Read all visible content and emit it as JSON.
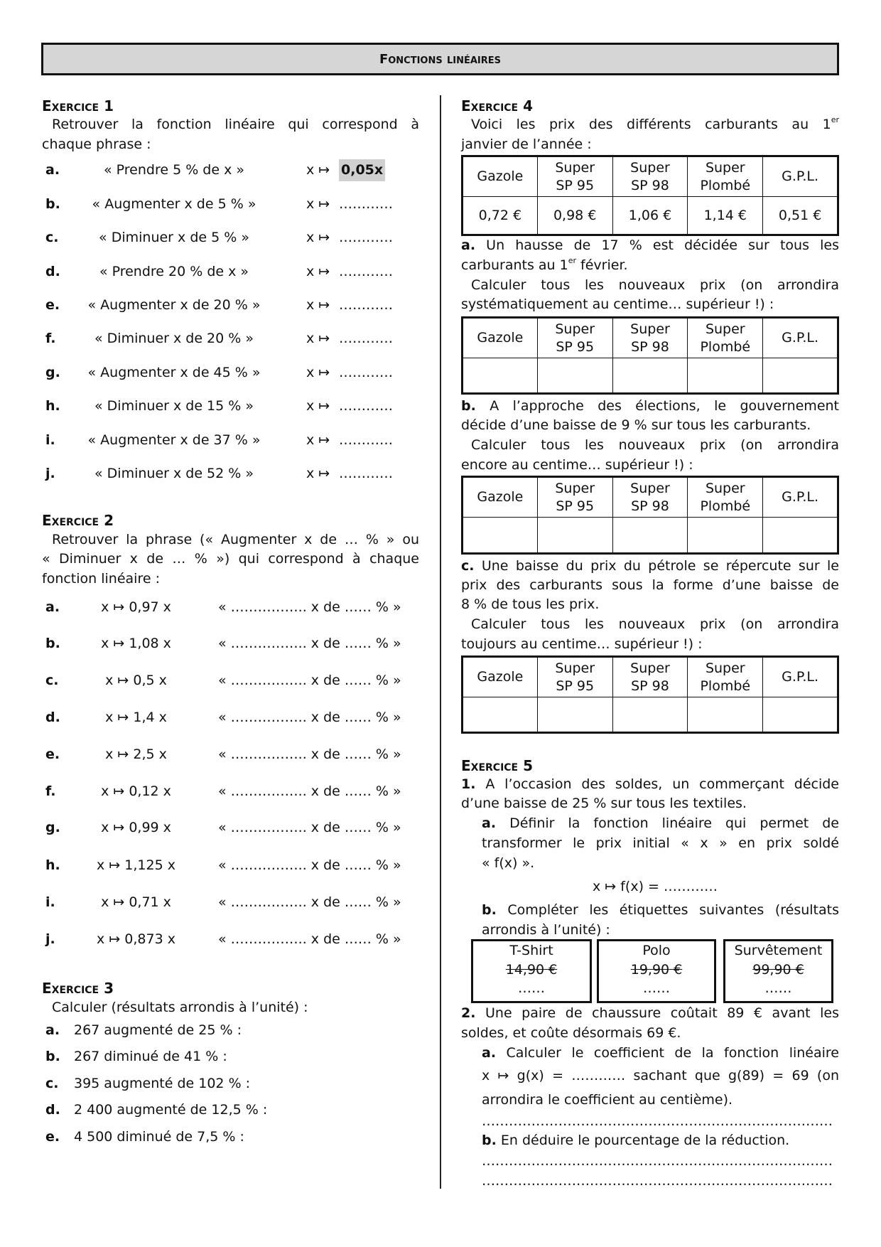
{
  "header": {
    "title": "Fonctions linéaires"
  },
  "exercise1": {
    "title": "Exercice 1",
    "intro": [
      "Retrouver la fonction linéaire qui correspond à",
      "chaque phrase :"
    ],
    "map_symbol": "x ↦",
    "items": [
      {
        "label": "a.",
        "phrase": "« Prendre 5 % de x »",
        "answer": "0,05x"
      },
      {
        "label": "b.",
        "phrase": "« Augmenter x de 5 % »",
        "answer": "…………"
      },
      {
        "label": "c.",
        "phrase": "« Diminuer x de 5 % »",
        "answer": "…………"
      },
      {
        "label": "d.",
        "phrase": "« Prendre 20 % de x »",
        "answer": "…………"
      },
      {
        "label": "e.",
        "phrase": "« Augmenter x de 20 % »",
        "answer": "…………"
      },
      {
        "label": "f.",
        "phrase": "« Diminuer x de 20 % »",
        "answer": "…………"
      },
      {
        "label": "g.",
        "phrase": "« Augmenter x de 45 % »",
        "answer": "…………"
      },
      {
        "label": "h.",
        "phrase": "« Diminuer x de 15 % »",
        "answer": "…………"
      },
      {
        "label": "i.",
        "phrase": "« Augmenter x de 37 % »",
        "answer": "…………"
      },
      {
        "label": "j.",
        "phrase": "« Diminuer x de 52 % »",
        "answer": "…………"
      }
    ]
  },
  "exercise2": {
    "title": "Exercice 2",
    "intro": [
      "Retrouver la phrase (« Augmenter x de … % » ou",
      "« Diminuer x de … % ») qui correspond à chaque",
      "fonction linéaire :"
    ],
    "blank": "« …………….. x de …… % »",
    "items": [
      {
        "label": "a.",
        "function": "x ↦ 0,97 x"
      },
      {
        "label": "b.",
        "function": "x ↦ 1,08 x"
      },
      {
        "label": "c.",
        "function": "x ↦ 0,5 x"
      },
      {
        "label": "d.",
        "function": "x ↦ 1,4 x"
      },
      {
        "label": "e.",
        "function": "x ↦ 2,5 x"
      },
      {
        "label": "f.",
        "function": "x ↦ 0,12 x"
      },
      {
        "label": "g.",
        "function": "x ↦ 0,99 x"
      },
      {
        "label": "h.",
        "function": "x ↦ 1,125 x"
      },
      {
        "label": "i.",
        "function": "x ↦ 0,71 x"
      },
      {
        "label": "j.",
        "function": "x ↦ 0,873 x"
      }
    ]
  },
  "exercise3": {
    "title": "Exercice 3",
    "intro": "Calculer (résultats arrondis à l’unité) :",
    "items": [
      {
        "label": "a.",
        "text": "267 augmenté de 25 % :"
      },
      {
        "label": "b.",
        "text": "267 diminué de 41 % :"
      },
      {
        "label": "c.",
        "text": "395 augmenté de 102 % :"
      },
      {
        "label": "d.",
        "text": "2 400 augmenté de 12,5 % :"
      },
      {
        "label": "e.",
        "text": "4 500 diminué de 7,5 % :"
      }
    ]
  },
  "exercise4": {
    "title": "Exercice 4",
    "intro_1": "Voici les prix des différents carburants au 1",
    "intro_sup": "er",
    "intro_2": "janvier de l’année :",
    "fuel_headers": [
      [
        "Gazole",
        ""
      ],
      [
        "Super",
        "SP 95"
      ],
      [
        "Super",
        "SP 98"
      ],
      [
        "Super",
        "Plombé"
      ],
      [
        "G.P.L.",
        ""
      ]
    ],
    "prices": [
      "0,72 €",
      "0,98 €",
      "1,06 €",
      "1,14 €",
      "0,51 €"
    ],
    "part_a": {
      "label": "a.",
      "line1": "Un hausse de 17 % est décidée sur tous les",
      "line2a": "carburants au 1",
      "line2sup": "er",
      "line2b": " février.",
      "line3": "Calculer tous les nouveaux prix (on arrondira",
      "line4": "systématiquement au centime… supérieur !) :"
    },
    "part_b": {
      "label": "b.",
      "line1": "A l’approche des élections, le gouvernement",
      "line2": "décide d’une baisse de 9 % sur tous les carburants.",
      "line3": "Calculer tous les nouveaux prix (on arrondira",
      "line4": "encore au centime… supérieur !) :"
    },
    "part_c": {
      "label": "c.",
      "line1": "Une baisse du prix du pétrole se répercute sur le",
      "line2": "prix des carburants sous la forme d’une baisse de",
      "line3": "8 % de tous les prix.",
      "line4": "Calculer tous les nouveaux prix (on arrondira",
      "line5": "toujours au centime… supérieur !) :"
    }
  },
  "exercise5": {
    "title": "Exercice 5",
    "q1": {
      "label": "1.",
      "line1": "A l’occasion des soldes, un commerçant décide",
      "line2": "d’une baisse de 25 % sur tous les textiles."
    },
    "q1a": {
      "label": "a.",
      "line1": "Définir la fonction linéaire qui permet de",
      "line2": "transformer le prix initial « x » en prix soldé",
      "line3": "« f(x) ».",
      "formula": "x ↦ f(x) = …………"
    },
    "q1b": {
      "label": "b.",
      "line1": "Compléter les étiquettes suivantes (résultats",
      "line2": "arrondis à l’unité) :"
    },
    "tags": [
      {
        "name": "T-Shirt",
        "old_price": "14,90 €",
        "new_price": "……"
      },
      {
        "name": "Polo",
        "old_price": "19,90 €",
        "new_price": "……"
      },
      {
        "name": "Survêtement",
        "old_price": "99,90 €",
        "new_price": "……"
      }
    ],
    "q2": {
      "label": "2.",
      "line1": "Une paire de chaussure coûtait 89 € avant les",
      "line2": "soldes, et coûte désormais 69 €."
    },
    "q2a": {
      "label": "a.",
      "line1": "Calculer le coefficient de la fonction linéaire",
      "line2": "x ↦ g(x) = ………… sachant que g(89) = 69 (on",
      "line3": "arrondira le coefficient au centième).",
      "answer_line": "……………………………………………………………………."
    },
    "q2b": {
      "label": "b.",
      "line1": "En déduire le pourcentage de la réduction.",
      "answer_line_1": "……………………………………………………………………….",
      "answer_line_2": "………………………………………………………………………."
    }
  }
}
